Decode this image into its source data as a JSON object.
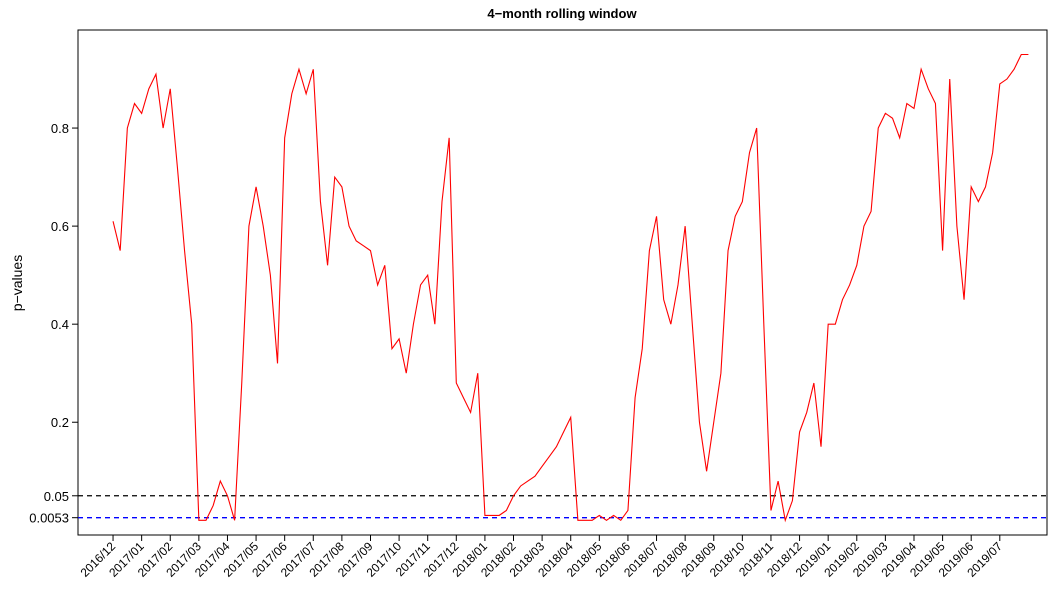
{
  "chart_data": {
    "type": "line",
    "title": "4−month rolling window",
    "y_label": "p−values",
    "series": [
      {
        "name": "p-values",
        "color": "#ff0000",
        "values": [
          0.61,
          0.55,
          0.8,
          0.85,
          0.83,
          0.88,
          0.91,
          0.8,
          0.88,
          0.72,
          0.55,
          0.4,
          0.0,
          0.0,
          0.03,
          0.08,
          0.05,
          0.0,
          0.28,
          0.6,
          0.68,
          0.6,
          0.5,
          0.32,
          0.78,
          0.87,
          0.92,
          0.87,
          0.92,
          0.65,
          0.52,
          0.7,
          0.68,
          0.6,
          0.57,
          0.56,
          0.55,
          0.48,
          0.52,
          0.35,
          0.37,
          0.3,
          0.4,
          0.48,
          0.5,
          0.4,
          0.65,
          0.78,
          0.28,
          0.25,
          0.22,
          0.3,
          0.01,
          0.01,
          0.01,
          0.02,
          0.05,
          0.07,
          0.08,
          0.09,
          0.11,
          0.13,
          0.15,
          0.18,
          0.21,
          0.0,
          0.0,
          0.0,
          0.01,
          0.0,
          0.01,
          0.0,
          0.02,
          0.25,
          0.35,
          0.55,
          0.62,
          0.45,
          0.4,
          0.48,
          0.6,
          0.4,
          0.2,
          0.1,
          0.2,
          0.3,
          0.55,
          0.62,
          0.65,
          0.75,
          0.8,
          0.4,
          0.02,
          0.08,
          0.0,
          0.04,
          0.18,
          0.22,
          0.28,
          0.15,
          0.4,
          0.4,
          0.45,
          0.48,
          0.52,
          0.6,
          0.63,
          0.8,
          0.83,
          0.82,
          0.78,
          0.85,
          0.84,
          0.92,
          0.88,
          0.85,
          0.55,
          0.9,
          0.6,
          0.45,
          0.68,
          0.65,
          0.68,
          0.75,
          0.89,
          0.9,
          0.92,
          0.95,
          0.95
        ]
      }
    ],
    "hlines": [
      {
        "value": 0.05,
        "color": "#000000"
      },
      {
        "value": 0.0053,
        "color": "#0000ff"
      }
    ],
    "ylim": [
      -0.03,
      1.0
    ],
    "yticks": [
      0.0053,
      0.05,
      0.2,
      0.4,
      0.6,
      0.8
    ],
    "xlim": [
      -4.9,
      130.6
    ],
    "xticks": [
      {
        "value": 0,
        "label": "2016/12"
      },
      {
        "value": 4,
        "label": "2017/01"
      },
      {
        "value": 8,
        "label": "2017/02"
      },
      {
        "value": 12,
        "label": "2017/03"
      },
      {
        "value": 16,
        "label": "2017/04"
      },
      {
        "value": 20,
        "label": "2017/05"
      },
      {
        "value": 24,
        "label": "2017/06"
      },
      {
        "value": 28,
        "label": "2017/07"
      },
      {
        "value": 32,
        "label": "2017/08"
      },
      {
        "value": 36,
        "label": "2017/09"
      },
      {
        "value": 40,
        "label": "2017/10"
      },
      {
        "value": 44,
        "label": "2017/11"
      },
      {
        "value": 48,
        "label": "2017/12"
      },
      {
        "value": 52,
        "label": "2018/01"
      },
      {
        "value": 56,
        "label": "2018/02"
      },
      {
        "value": 60,
        "label": "2018/03"
      },
      {
        "value": 64,
        "label": "2018/04"
      },
      {
        "value": 68,
        "label": "2018/05"
      },
      {
        "value": 72,
        "label": "2018/06"
      },
      {
        "value": 76,
        "label": "2018/07"
      },
      {
        "value": 80,
        "label": "2018/08"
      },
      {
        "value": 84,
        "label": "2018/09"
      },
      {
        "value": 88,
        "label": "2018/10"
      },
      {
        "value": 92,
        "label": "2018/11"
      },
      {
        "value": 96,
        "label": "2018/12"
      },
      {
        "value": 100,
        "label": "2019/01"
      },
      {
        "value": 104,
        "label": "2019/02"
      },
      {
        "value": 108,
        "label": "2019/03"
      },
      {
        "value": 112,
        "label": "2019/04"
      },
      {
        "value": 116,
        "label": "2019/05"
      },
      {
        "value": 120,
        "label": "2019/06"
      },
      {
        "value": 124,
        "label": "2019/07"
      }
    ]
  }
}
